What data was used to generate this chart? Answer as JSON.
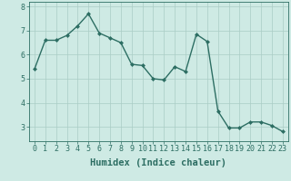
{
  "xlabel": "Humidex (Indice chaleur)",
  "x": [
    0,
    1,
    2,
    3,
    4,
    5,
    6,
    7,
    8,
    9,
    10,
    11,
    12,
    13,
    14,
    15,
    16,
    17,
    18,
    19,
    20,
    21,
    22,
    23
  ],
  "y": [
    5.4,
    6.6,
    6.6,
    6.8,
    7.2,
    7.7,
    6.9,
    6.7,
    6.5,
    5.6,
    5.55,
    5.0,
    4.95,
    5.5,
    5.3,
    6.85,
    6.55,
    3.65,
    2.95,
    2.95,
    3.2,
    3.2,
    3.05,
    2.8
  ],
  "ylim": [
    2.4,
    8.2
  ],
  "xlim": [
    -0.5,
    23.5
  ],
  "yticks": [
    3,
    4,
    5,
    6,
    7,
    8
  ],
  "xticks": [
    0,
    1,
    2,
    3,
    4,
    5,
    6,
    7,
    8,
    9,
    10,
    11,
    12,
    13,
    14,
    15,
    16,
    17,
    18,
    19,
    20,
    21,
    22,
    23
  ],
  "line_color": "#2d6e63",
  "marker": "D",
  "marker_size": 2.0,
  "bg_color": "#ceeae4",
  "grid_color": "#aaccc5",
  "axis_color": "#2d6e63",
  "tick_color": "#2d6e63",
  "label_color": "#2d6e63",
  "line_width": 1.0,
  "xlabel_fontsize": 7.5,
  "tick_fontsize": 6.0
}
